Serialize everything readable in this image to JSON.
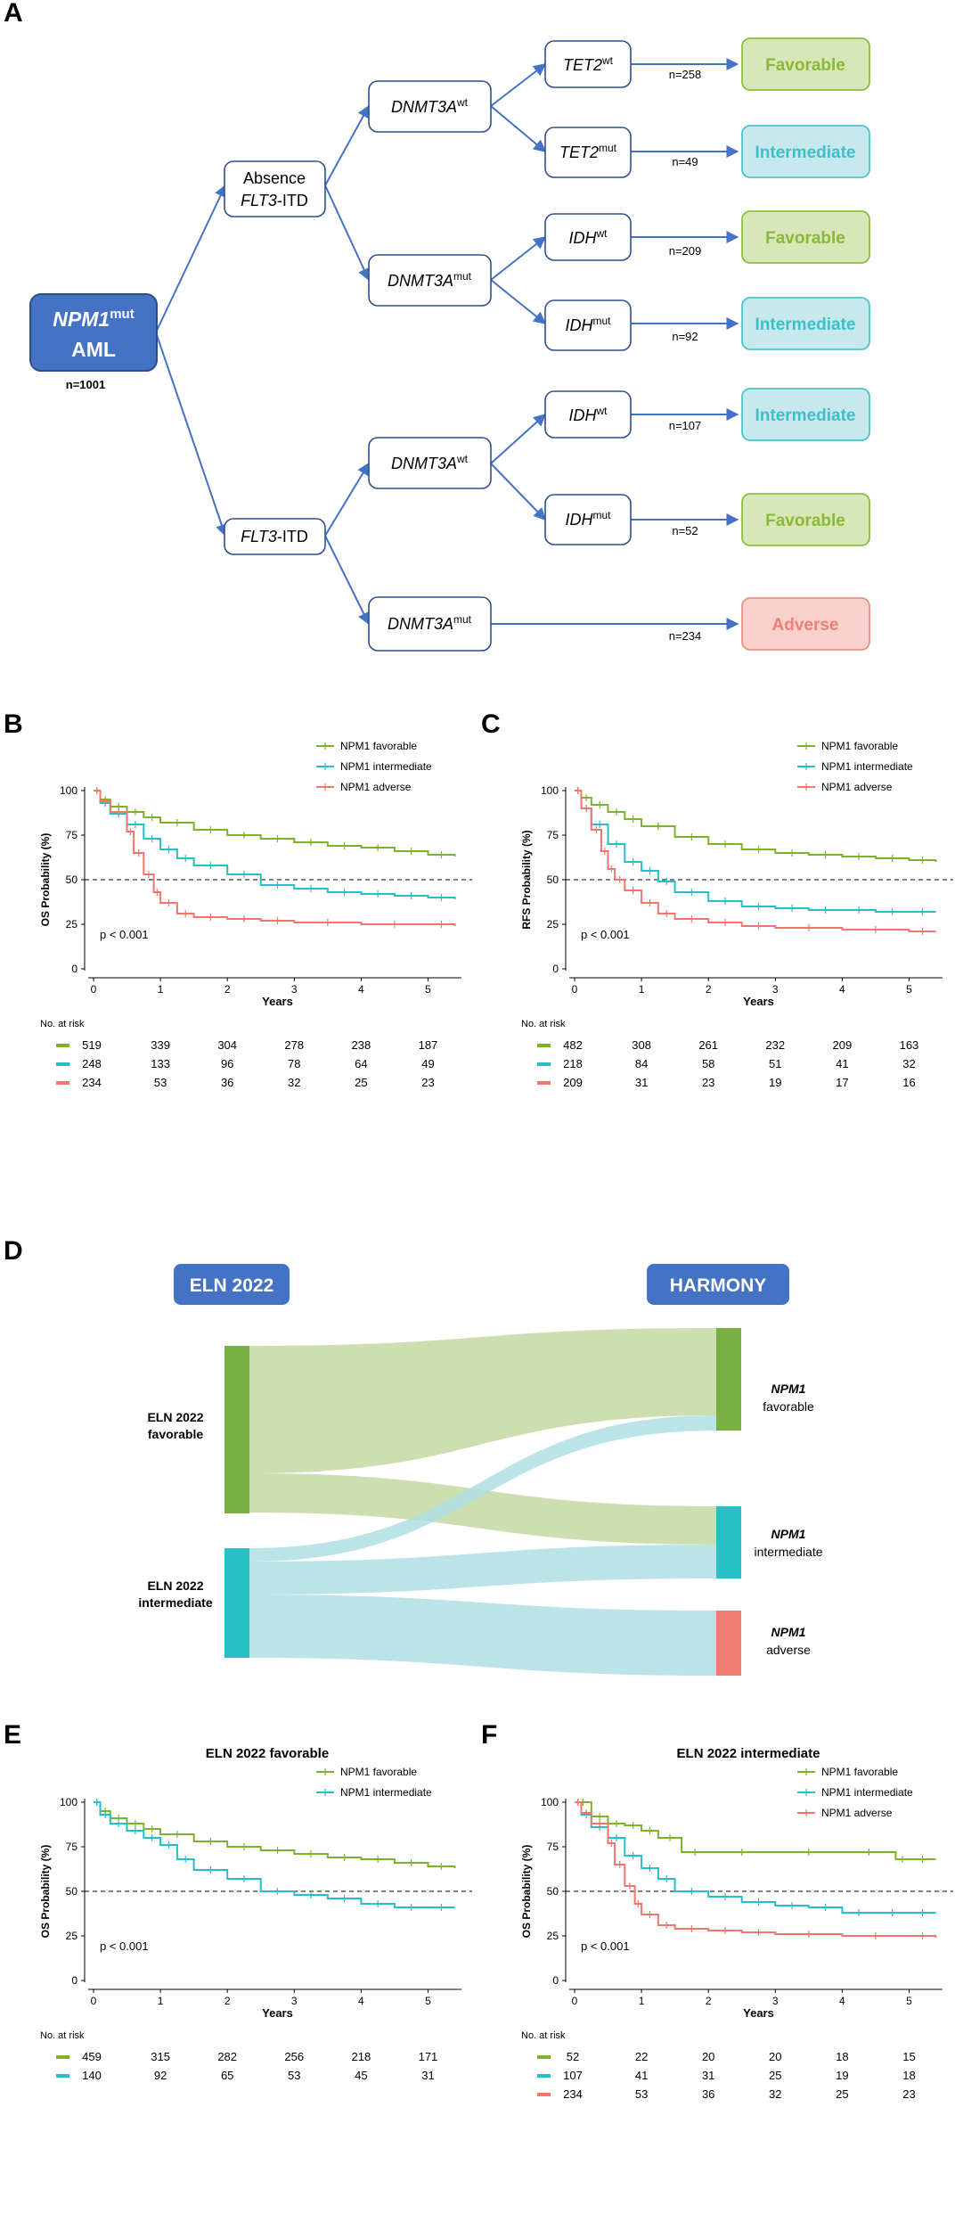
{
  "colors": {
    "favorable": "#7cb32a",
    "intermediate": "#26bfc8",
    "adverse": "#f2766c",
    "arrow": "#4472c4",
    "box_border": "#2e4f8c",
    "root_fill": "#4472c4",
    "fav_fill": "#d8e6b8",
    "fav_border": "#8fbf3f",
    "fav_text": "#8ab838",
    "int_fill": "#c7e8ec",
    "int_border": "#4fc3cc",
    "int_text": "#3ebfc8",
    "adv_fill": "#f8d1cd",
    "adv_border": "#ee8f87",
    "adv_text": "#ee7f76",
    "header_fill": "#4472c4",
    "sankey_fav": "#c8dca8",
    "sankey_int": "#aedfe3",
    "bar_fav": "#7aaf44",
    "bar_int": "#28bfc6",
    "bar_adv": "#f07b73"
  },
  "panel_labels": {
    "A": "A",
    "B": "B",
    "C": "C",
    "D": "D",
    "E": "E",
    "F": "F"
  },
  "tree": {
    "root": {
      "name": "NPM1",
      "sup": "mut",
      "sub": "AML",
      "n": "n=1001"
    },
    "absence": {
      "line1": "Absence",
      "line2a": "FLT3",
      "line2b": "-ITD"
    },
    "flt3": {
      "italic": "FLT3",
      "rest": "-ITD"
    },
    "dnmt_wt_1": {
      "gene": "DNMT3A",
      "sup": "wt"
    },
    "dnmt_mut_1": {
      "gene": "DNMT3A",
      "sup": "mut"
    },
    "dnmt_wt_2": {
      "gene": "DNMT3A",
      "sup": "wt"
    },
    "dnmt_mut_2": {
      "gene": "DNMT3A",
      "sup": "mut"
    },
    "tet2_wt": {
      "gene": "TET2",
      "sup": "wt"
    },
    "tet2_mut": {
      "gene": "TET2",
      "sup": "mut"
    },
    "idh_wt_1": {
      "gene": "IDH",
      "sup": "wt"
    },
    "idh_mut_1": {
      "gene": "IDH",
      "sup": "mut"
    },
    "idh_wt_2": {
      "gene": "IDH",
      "sup": "wt"
    },
    "idh_mut_2": {
      "gene": "IDH",
      "sup": "mut"
    },
    "outcomes": [
      {
        "label": "Favorable",
        "n": "n=258",
        "risk": "fav"
      },
      {
        "label": "Intermediate",
        "n": "n=49",
        "risk": "int"
      },
      {
        "label": "Favorable",
        "n": "n=209",
        "risk": "fav"
      },
      {
        "label": "Intermediate",
        "n": "n=92",
        "risk": "int"
      },
      {
        "label": "Intermediate",
        "n": "n=107",
        "risk": "int"
      },
      {
        "label": "Favorable",
        "n": "n=52",
        "risk": "fav"
      },
      {
        "label": "Adverse",
        "n": "n=234",
        "risk": "adv"
      }
    ]
  },
  "sankey": {
    "left_header": "ELN 2022",
    "right_header": "HARMONY",
    "left_nodes": [
      {
        "line1": "ELN 2022",
        "line2": "favorable"
      },
      {
        "line1": "ELN 2022",
        "line2": "intermediate"
      }
    ],
    "right_nodes": [
      {
        "line1": "NPM1",
        "line2": "favorable"
      },
      {
        "line1": "NPM1",
        "line2": "intermediate"
      },
      {
        "line1": "NPM1",
        "line2": "adverse"
      }
    ]
  },
  "chart_data": [
    {
      "panel": "B",
      "type": "line",
      "title": "",
      "xlabel": "Years",
      "ylabel": "OS Probability (%)",
      "xlim": [
        0,
        5.5
      ],
      "ylim": [
        0,
        100
      ],
      "xticks": [
        0,
        1,
        2,
        3,
        4,
        5
      ],
      "yticks": [
        0,
        25,
        50,
        75,
        100
      ],
      "reference_line": 50,
      "pvalue": "p < 0.001",
      "risk_table_title": "No. at risk",
      "series": [
        {
          "name": "NPM1 favorable",
          "color": "#7cb32a",
          "x": [
            0,
            0.1,
            0.25,
            0.5,
            0.75,
            1,
            1.5,
            2,
            2.5,
            3,
            3.5,
            4,
            4.5,
            5,
            5.4
          ],
          "y": [
            100,
            95,
            91,
            88,
            85,
            82,
            78,
            75,
            73,
            71,
            69,
            68,
            66,
            64,
            63
          ],
          "at_risk": [
            519,
            339,
            304,
            278,
            238,
            187
          ]
        },
        {
          "name": "NPM1 intermediate",
          "color": "#26bfc8",
          "x": [
            0,
            0.1,
            0.25,
            0.5,
            0.75,
            1,
            1.25,
            1.5,
            2,
            2.5,
            3,
            3.5,
            4,
            4.5,
            5,
            5.4
          ],
          "y": [
            100,
            93,
            87,
            81,
            73,
            67,
            62,
            58,
            53,
            47,
            45,
            43,
            42,
            41,
            40,
            39
          ],
          "at_risk": [
            248,
            133,
            96,
            78,
            64,
            49
          ]
        },
        {
          "name": "NPM1 adverse",
          "color": "#f2766c",
          "x": [
            0,
            0.1,
            0.25,
            0.5,
            0.6,
            0.75,
            0.9,
            1,
            1.25,
            1.5,
            2,
            2.5,
            3,
            4,
            5,
            5.4
          ],
          "y": [
            100,
            94,
            88,
            77,
            65,
            53,
            43,
            37,
            31,
            29,
            28,
            27,
            26,
            25,
            25,
            24
          ],
          "at_risk": [
            234,
            53,
            36,
            32,
            25,
            23
          ]
        }
      ]
    },
    {
      "panel": "C",
      "type": "line",
      "title": "",
      "xlabel": "Years",
      "ylabel": "RFS Probability (%)",
      "xlim": [
        0,
        5.5
      ],
      "ylim": [
        0,
        100
      ],
      "xticks": [
        0,
        1,
        2,
        3,
        4,
        5
      ],
      "yticks": [
        0,
        25,
        50,
        75,
        100
      ],
      "reference_line": 50,
      "pvalue": "p < 0.001",
      "risk_table_title": "No. at risk",
      "series": [
        {
          "name": "NPM1 favorable",
          "color": "#7cb32a",
          "x": [
            0,
            0.1,
            0.25,
            0.5,
            0.75,
            1,
            1.5,
            2,
            2.5,
            3,
            3.5,
            4,
            4.5,
            5,
            5.4
          ],
          "y": [
            100,
            96,
            92,
            88,
            84,
            80,
            74,
            70,
            67,
            65,
            64,
            63,
            62,
            61,
            60
          ],
          "at_risk": [
            482,
            308,
            261,
            232,
            209,
            163
          ]
        },
        {
          "name": "NPM1 intermediate",
          "color": "#26bfc8",
          "x": [
            0,
            0.1,
            0.25,
            0.5,
            0.75,
            1,
            1.25,
            1.5,
            2,
            2.5,
            3,
            3.5,
            4,
            4.5,
            5,
            5.4
          ],
          "y": [
            100,
            90,
            81,
            70,
            60,
            55,
            49,
            43,
            38,
            35,
            34,
            33,
            33,
            32,
            32,
            32
          ],
          "at_risk": [
            218,
            84,
            58,
            51,
            41,
            32
          ]
        },
        {
          "name": "NPM1 adverse",
          "color": "#f2766c",
          "x": [
            0,
            0.1,
            0.25,
            0.4,
            0.5,
            0.6,
            0.75,
            1,
            1.25,
            1.5,
            2,
            2.5,
            3,
            4,
            5,
            5.4
          ],
          "y": [
            100,
            90,
            78,
            66,
            56,
            50,
            44,
            37,
            31,
            28,
            26,
            24,
            23,
            22,
            21,
            21
          ],
          "at_risk": [
            209,
            31,
            23,
            19,
            17,
            16
          ]
        }
      ]
    },
    {
      "panel": "E",
      "type": "line",
      "title": "ELN 2022 favorable",
      "xlabel": "Years",
      "ylabel": "OS Probability (%)",
      "xlim": [
        0,
        5.5
      ],
      "ylim": [
        0,
        100
      ],
      "xticks": [
        0,
        1,
        2,
        3,
        4,
        5
      ],
      "yticks": [
        0,
        25,
        50,
        75,
        100
      ],
      "reference_line": 50,
      "pvalue": "p < 0.001",
      "risk_table_title": "No. at risk",
      "series": [
        {
          "name": "NPM1 favorable",
          "color": "#7cb32a",
          "x": [
            0,
            0.1,
            0.25,
            0.5,
            0.75,
            1,
            1.5,
            2,
            2.5,
            3,
            3.5,
            4,
            4.5,
            5,
            5.4
          ],
          "y": [
            100,
            95,
            91,
            88,
            85,
            82,
            78,
            75,
            73,
            71,
            69,
            68,
            66,
            64,
            63
          ],
          "at_risk": [
            459,
            315,
            282,
            256,
            218,
            171
          ]
        },
        {
          "name": "NPM1 intermediate",
          "color": "#26bfc8",
          "x": [
            0,
            0.1,
            0.25,
            0.5,
            0.75,
            1,
            1.25,
            1.5,
            2,
            2.5,
            3,
            3.5,
            4,
            4.5,
            5,
            5.4
          ],
          "y": [
            100,
            93,
            88,
            84,
            80,
            76,
            68,
            62,
            57,
            50,
            48,
            46,
            43,
            41,
            41,
            41
          ],
          "at_risk": [
            140,
            92,
            65,
            53,
            45,
            31
          ]
        }
      ]
    },
    {
      "panel": "F",
      "type": "line",
      "title": "ELN 2022 intermediate",
      "xlabel": "Years",
      "ylabel": "OS Probability (%)",
      "xlim": [
        0,
        5.5
      ],
      "ylim": [
        0,
        100
      ],
      "xticks": [
        0,
        1,
        2,
        3,
        4,
        5
      ],
      "yticks": [
        0,
        25,
        50,
        75,
        100
      ],
      "reference_line": 50,
      "pvalue": "p < 0.001",
      "risk_table_title": "No. at risk",
      "series": [
        {
          "name": "NPM1 favorable",
          "color": "#7cb32a",
          "x": [
            0,
            0.25,
            0.5,
            0.75,
            1,
            1.25,
            1.6,
            2,
            3,
            4,
            4.8,
            5,
            5.4
          ],
          "y": [
            100,
            92,
            88,
            87,
            84,
            80,
            72,
            72,
            72,
            72,
            68,
            68,
            68
          ],
          "at_risk": [
            52,
            22,
            20,
            20,
            18,
            15
          ]
        },
        {
          "name": "NPM1 intermediate",
          "color": "#26bfc8",
          "x": [
            0,
            0.1,
            0.25,
            0.5,
            0.75,
            1,
            1.25,
            1.5,
            2,
            2.5,
            3,
            3.5,
            4,
            4.5,
            5,
            5.4
          ],
          "y": [
            100,
            93,
            86,
            80,
            70,
            63,
            57,
            50,
            47,
            44,
            42,
            41,
            38,
            38,
            38,
            38
          ],
          "at_risk": [
            107,
            41,
            31,
            25,
            19,
            18
          ]
        },
        {
          "name": "NPM1 adverse",
          "color": "#f2766c",
          "x": [
            0,
            0.1,
            0.25,
            0.5,
            0.6,
            0.75,
            0.9,
            1,
            1.25,
            1.5,
            2,
            2.5,
            3,
            4,
            5,
            5.4
          ],
          "y": [
            100,
            94,
            88,
            77,
            65,
            53,
            43,
            37,
            31,
            29,
            28,
            27,
            26,
            25,
            25,
            24
          ],
          "at_risk": [
            234,
            53,
            36,
            32,
            25,
            23
          ]
        }
      ]
    }
  ]
}
